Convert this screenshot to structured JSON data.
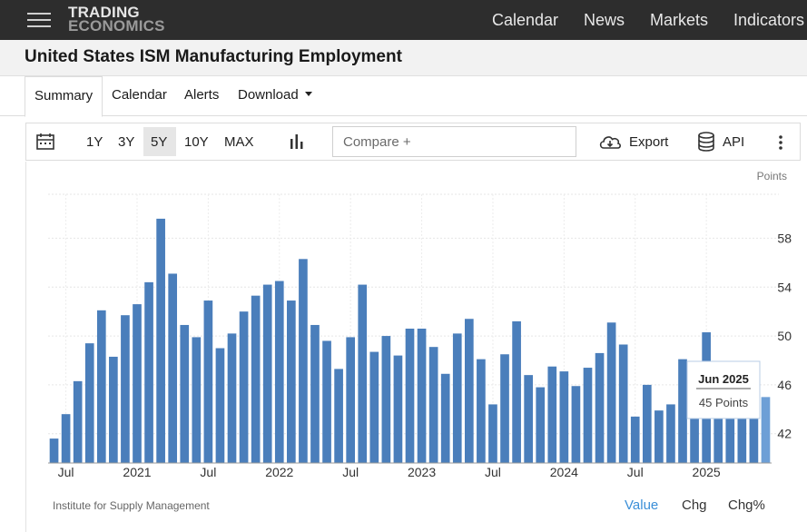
{
  "header": {
    "logo_line1": "TRADING",
    "logo_line2": "ECONOMICS",
    "nav": [
      "Calendar",
      "News",
      "Markets",
      "Indicators"
    ]
  },
  "page": {
    "title": "United States ISM Manufacturing Employment"
  },
  "tabs": [
    {
      "label": "Summary",
      "active": true
    },
    {
      "label": "Calendar"
    },
    {
      "label": "Alerts"
    },
    {
      "label": "Download"
    }
  ],
  "toolbar": {
    "ranges": [
      "1Y",
      "3Y",
      "5Y",
      "10Y",
      "MAX"
    ],
    "active_range": "5Y",
    "compare_placeholder": "Compare +",
    "export_label": "Export",
    "api_label": "API"
  },
  "chart_data": {
    "type": "bar",
    "unit_label": "Points",
    "y_ticks": [
      42,
      46,
      50,
      54,
      58
    ],
    "ylim": [
      39.6,
      61.6
    ],
    "grid": true,
    "x_tick_labels": [
      "Jul",
      "2021",
      "Jul",
      "2022",
      "Jul",
      "2023",
      "Jul",
      "2024",
      "Jul",
      "2025"
    ],
    "categories": [
      "Jun 2020",
      "Jul 2020",
      "Aug 2020",
      "Sep 2020",
      "Oct 2020",
      "Nov 2020",
      "Dec 2020",
      "Jan 2021",
      "Feb 2021",
      "Mar 2021",
      "Apr 2021",
      "May 2021",
      "Jun 2021",
      "Jul 2021",
      "Aug 2021",
      "Sep 2021",
      "Oct 2021",
      "Nov 2021",
      "Dec 2021",
      "Jan 2022",
      "Feb 2022",
      "Mar 2022",
      "Apr 2022",
      "May 2022",
      "Jun 2022",
      "Jul 2022",
      "Aug 2022",
      "Sep 2022",
      "Oct 2022",
      "Nov 2022",
      "Dec 2022",
      "Jan 2023",
      "Feb 2023",
      "Mar 2023",
      "Apr 2023",
      "May 2023",
      "Jun 2023",
      "Jul 2023",
      "Aug 2023",
      "Sep 2023",
      "Oct 2023",
      "Nov 2023",
      "Dec 2023",
      "Jan 2024",
      "Feb 2024",
      "Mar 2024",
      "Apr 2024",
      "May 2024",
      "Jun 2024",
      "Jul 2024",
      "Aug 2024",
      "Sep 2024",
      "Oct 2024",
      "Nov 2024",
      "Dec 2024",
      "Jan 2025",
      "Feb 2025",
      "Mar 2025",
      "Apr 2025",
      "May 2025",
      "Jun 2025"
    ],
    "values": [
      41.6,
      43.6,
      46.3,
      49.4,
      52.1,
      48.3,
      51.7,
      52.6,
      54.4,
      59.6,
      55.1,
      50.9,
      49.9,
      52.9,
      49.0,
      50.2,
      52.0,
      53.3,
      54.2,
      54.5,
      52.9,
      56.3,
      50.9,
      49.6,
      47.3,
      49.9,
      54.2,
      48.7,
      50.0,
      48.4,
      50.6,
      50.6,
      49.1,
      46.9,
      50.2,
      51.4,
      48.1,
      44.4,
      48.5,
      51.2,
      46.8,
      45.8,
      47.5,
      47.1,
      45.9,
      47.4,
      48.6,
      51.1,
      49.3,
      43.4,
      46.0,
      43.9,
      44.4,
      48.1,
      45.3,
      50.3,
      47.6,
      44.7,
      46.5,
      46.8,
      45.0
    ],
    "tooltip": {
      "date": "Jun 2025",
      "value_text": "45 Points"
    },
    "bar_color": "#4a7ebb",
    "last_bar_color": "#6d9fd6",
    "source": "Institute for Supply Management"
  },
  "footer": {
    "views": [
      "Value",
      "Chg",
      "Chg%"
    ],
    "active_view": "Value"
  }
}
